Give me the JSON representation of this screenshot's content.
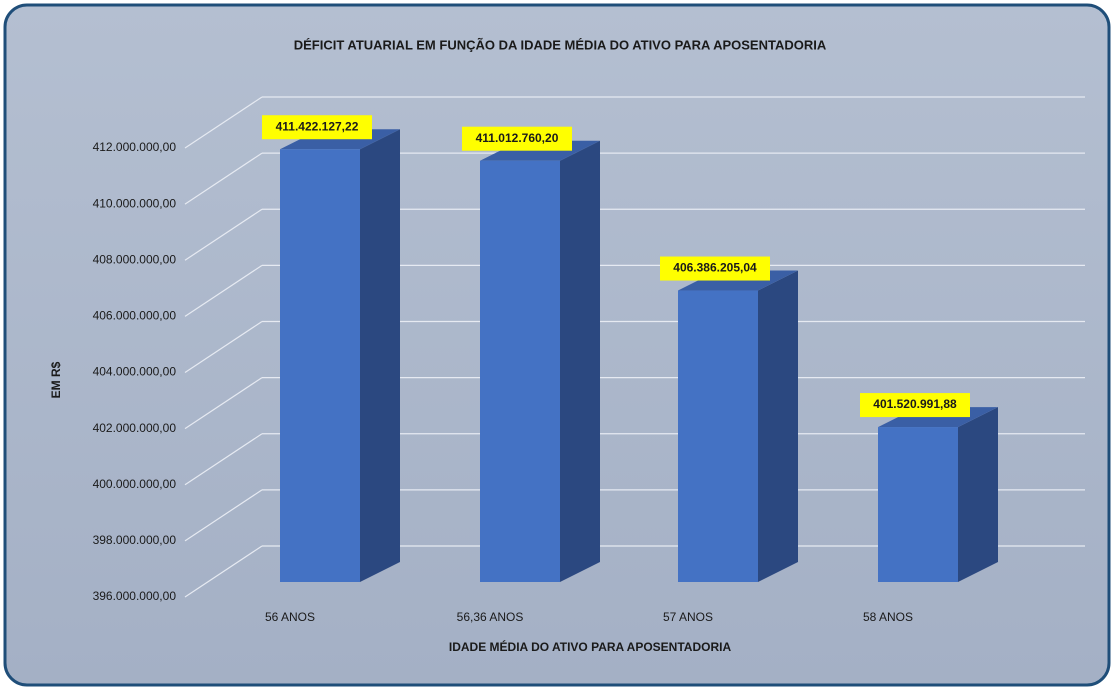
{
  "chart_data": {
    "type": "bar3d",
    "title": "DÉFICIT ATUARIAL EM FUNÇÃO DA IDADE MÉDIA DO ATIVO PARA APOSENTADORIA",
    "x_label": "IDADE MÉDIA DO ATIVO PARA APOSENTADORIA",
    "y_label": "EM R$",
    "categories": [
      "56 ANOS",
      "56,36 ANOS",
      "57 ANOS",
      "58 ANOS"
    ],
    "values": [
      411422127.22,
      411012760.2,
      406386205.04,
      401520991.88
    ],
    "value_labels": [
      "411.422.127,22",
      "411.012.760,20",
      "406.386.205,04",
      "401.520.991,88"
    ],
    "color": "#4472c4",
    "ylim": [
      396000000,
      412000000
    ],
    "yticks": [
      {
        "value": 396000000,
        "label": "396.000.000,00"
      },
      {
        "value": 398000000,
        "label": "398.000.000,00"
      },
      {
        "value": 400000000,
        "label": "400.000.000,00"
      },
      {
        "value": 402000000,
        "label": "402.000.000,00"
      },
      {
        "value": 404000000,
        "label": "404.000.000,00"
      },
      {
        "value": 406000000,
        "label": "406.000.000,00"
      },
      {
        "value": 408000000,
        "label": "408.000.000,00"
      },
      {
        "value": 410000000,
        "label": "410.000.000,00"
      },
      {
        "value": 412000000,
        "label": "412.000.000,00"
      }
    ],
    "grid": true
  }
}
